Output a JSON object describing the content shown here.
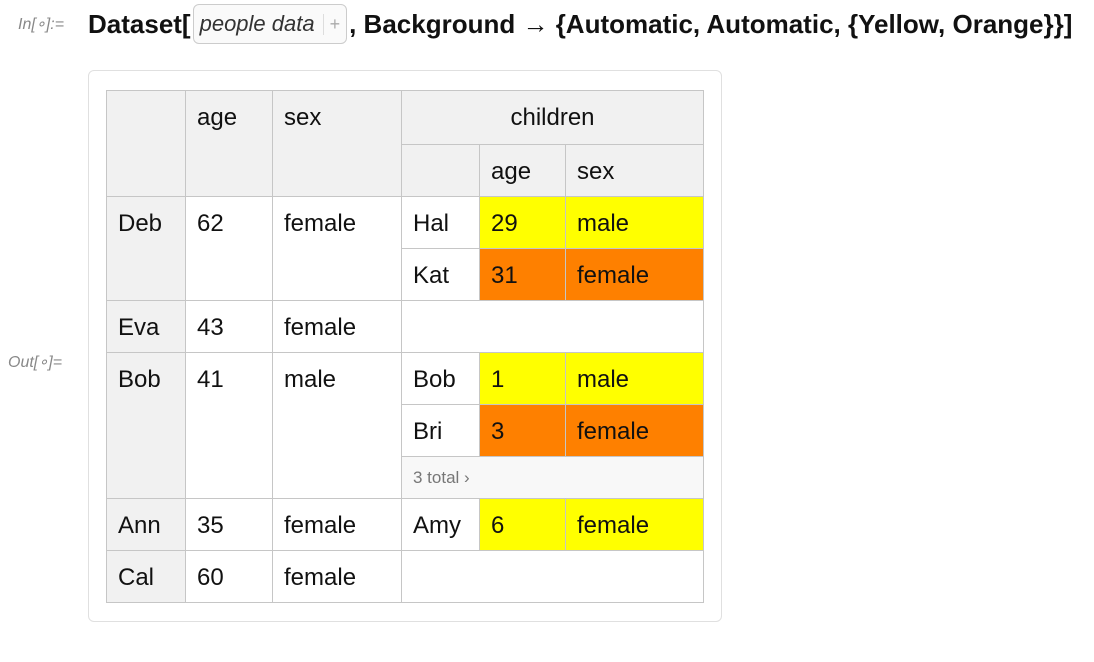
{
  "input": {
    "label": "In[∘]:=",
    "head": "Dataset[",
    "placeholder": "people data",
    "placeholder_icon": "+",
    "rest": ", Background → {Automatic, Automatic, {Yellow, Orange}}]"
  },
  "output": {
    "label": "Out[∘]="
  },
  "table": {
    "headers": [
      "age",
      "sex",
      "children"
    ],
    "child_headers": [
      "age",
      "sex"
    ],
    "colors": [
      "#ffff00",
      "#fe8000"
    ],
    "rows": [
      {
        "name": "Deb",
        "age": 62,
        "sex": "female",
        "children": [
          {
            "name": "Hal",
            "age": 29,
            "sex": "male"
          },
          {
            "name": "Kat",
            "age": 31,
            "sex": "female"
          }
        ]
      },
      {
        "name": "Eva",
        "age": 43,
        "sex": "female",
        "children": []
      },
      {
        "name": "Bob",
        "age": 41,
        "sex": "male",
        "children": [
          {
            "name": "Bob",
            "age": 1,
            "sex": "male"
          },
          {
            "name": "Bri",
            "age": 3,
            "sex": "female"
          }
        ],
        "more": "3 total ›"
      },
      {
        "name": "Ann",
        "age": 35,
        "sex": "female",
        "children": [
          {
            "name": "Amy",
            "age": 6,
            "sex": "female"
          }
        ]
      },
      {
        "name": "Cal",
        "age": 60,
        "sex": "female",
        "children": []
      }
    ]
  }
}
